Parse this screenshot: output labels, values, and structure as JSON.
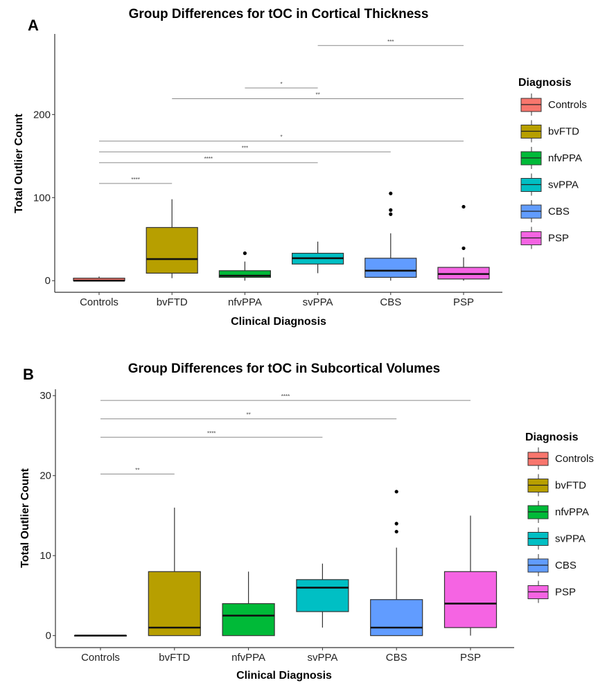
{
  "chart_data": [
    {
      "type": "box",
      "panel": "A",
      "title": "Group Differences for tOC in Cortical Thickness",
      "xlabel": "Clinical Diagnosis",
      "ylabel": "Total Outlier Count",
      "ylim": [
        -14,
        297
      ],
      "yticks": [
        0,
        100,
        200
      ],
      "grid": false,
      "legend": {
        "title": "Diagnosis",
        "position": "right"
      },
      "categories": [
        "Controls",
        "bvFTD",
        "nfvPPA",
        "svPPA",
        "CBS",
        "PSP"
      ],
      "colors": [
        "#F8766D",
        "#B79F00",
        "#00BA38",
        "#00BFC4",
        "#619CFF",
        "#F564E3"
      ],
      "boxes": [
        {
          "name": "Controls",
          "whisker_low": 0,
          "q1": 0,
          "median": 0,
          "q3": 3,
          "whisker_high": 5,
          "outliers": []
        },
        {
          "name": "bvFTD",
          "whisker_low": 3,
          "q1": 9,
          "median": 26,
          "q3": 64,
          "whisker_high": 98,
          "outliers": []
        },
        {
          "name": "nfvPPA",
          "whisker_low": 0,
          "q1": 4,
          "median": 6,
          "q3": 12,
          "whisker_high": 23,
          "outliers": [
            33
          ]
        },
        {
          "name": "svPPA",
          "whisker_low": 9,
          "q1": 20,
          "median": 27,
          "q3": 33,
          "whisker_high": 47,
          "outliers": []
        },
        {
          "name": "CBS",
          "whisker_low": 0,
          "q1": 4,
          "median": 12,
          "q3": 27,
          "whisker_high": 57,
          "outliers": [
            80,
            85,
            105
          ]
        },
        {
          "name": "PSP",
          "whisker_low": 0,
          "q1": 2,
          "median": 8,
          "q3": 16,
          "whisker_high": 28,
          "outliers": [
            39,
            89
          ]
        }
      ],
      "comparisons": [
        {
          "from": "Controls",
          "to": "bvFTD",
          "y": 117,
          "label": "****"
        },
        {
          "from": "Controls",
          "to": "svPPA",
          "y": 142,
          "label": "****"
        },
        {
          "from": "Controls",
          "to": "CBS",
          "y": 155,
          "label": "***"
        },
        {
          "from": "Controls",
          "to": "PSP",
          "y": 168,
          "label": "*"
        },
        {
          "from": "bvFTD",
          "to": "PSP",
          "y": 219,
          "label": "**"
        },
        {
          "from": "nfvPPA",
          "to": "svPPA",
          "y": 232,
          "label": "*"
        },
        {
          "from": "svPPA",
          "to": "PSP",
          "y": 283,
          "label": "***"
        }
      ]
    },
    {
      "type": "box",
      "panel": "B",
      "title": "Group Differences for tOC in Subcortical Volumes",
      "xlabel": "Clinical Diagnosis",
      "ylabel": "Total Outlier Count",
      "ylim": [
        -1.5,
        30.8
      ],
      "yticks": [
        0,
        10,
        20,
        30
      ],
      "grid": false,
      "legend": {
        "title": "Diagnosis",
        "position": "right"
      },
      "categories": [
        "Controls",
        "bvFTD",
        "nfvPPA",
        "svPPA",
        "CBS",
        "PSP"
      ],
      "colors": [
        "#F8766D",
        "#B79F00",
        "#00BA38",
        "#00BFC4",
        "#619CFF",
        "#F564E3"
      ],
      "boxes": [
        {
          "name": "Controls",
          "whisker_low": 0,
          "q1": 0,
          "median": 0,
          "q3": 0,
          "whisker_high": 0,
          "outliers": []
        },
        {
          "name": "bvFTD",
          "whisker_low": 0,
          "q1": 0,
          "median": 1,
          "q3": 8,
          "whisker_high": 16,
          "outliers": []
        },
        {
          "name": "nfvPPA",
          "whisker_low": 0,
          "q1": 0,
          "median": 2.5,
          "q3": 4,
          "whisker_high": 8,
          "outliers": []
        },
        {
          "name": "svPPA",
          "whisker_low": 1,
          "q1": 3,
          "median": 6,
          "q3": 7,
          "whisker_high": 9,
          "outliers": []
        },
        {
          "name": "CBS",
          "whisker_low": 0,
          "q1": 0,
          "median": 1,
          "q3": 4.5,
          "whisker_high": 11,
          "outliers": [
            13,
            14,
            18
          ]
        },
        {
          "name": "PSP",
          "whisker_low": 0,
          "q1": 1,
          "median": 4,
          "q3": 8,
          "whisker_high": 15,
          "outliers": []
        }
      ],
      "comparisons": [
        {
          "from": "Controls",
          "to": "bvFTD",
          "y": 20.2,
          "label": "**"
        },
        {
          "from": "Controls",
          "to": "svPPA",
          "y": 24.8,
          "label": "****"
        },
        {
          "from": "Controls",
          "to": "CBS",
          "y": 27.1,
          "label": "**"
        },
        {
          "from": "Controls",
          "to": "PSP",
          "y": 29.4,
          "label": "****"
        }
      ]
    }
  ]
}
